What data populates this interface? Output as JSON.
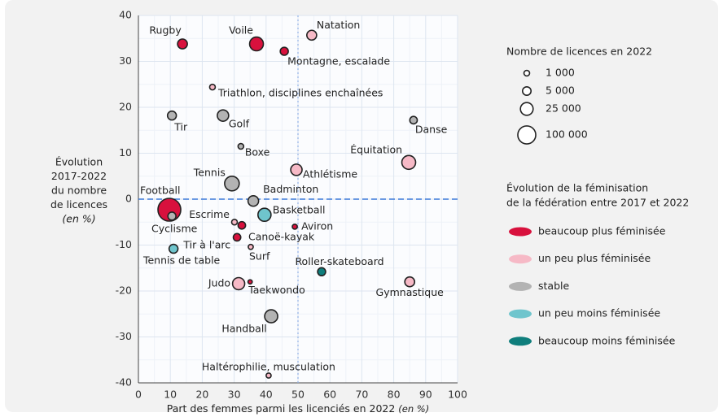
{
  "chart_data": {
    "type": "scatter",
    "x_label": "Part des femmes parmi les licenciés en 2022",
    "x_label_unit": "(en %)",
    "y_label": [
      "Évolution",
      "2017-2022",
      "du nombre",
      "de licences"
    ],
    "y_label_unit": "(en %)",
    "xlim": [
      0,
      100
    ],
    "xticks": [
      0,
      10,
      20,
      30,
      40,
      50,
      60,
      70,
      80,
      90,
      100
    ],
    "ylim": [
      -40,
      40
    ],
    "yticks": [
      -40,
      -30,
      -20,
      -10,
      0,
      10,
      20,
      30,
      40
    ],
    "grid": true,
    "hline": 0,
    "vline": 50,
    "size_legend": {
      "title": "Nombre de licences en 2022",
      "sizes": [
        {
          "value": 1000,
          "label": "1 000"
        },
        {
          "value": 5000,
          "label": "5 000"
        },
        {
          "value": 25000,
          "label": "25 000"
        },
        {
          "value": 100000,
          "label": "100 000"
        }
      ]
    },
    "color_legend_title": [
      "Évolution de la féminisation",
      "de la fédération entre 2017 et 2022"
    ],
    "series": [
      {
        "name": "beaucoup plus féminisée",
        "color": "#d8113d",
        "labels": [
          "Rugby",
          "Voile",
          "Montagne, escalade",
          "Football",
          "Canoë-kayak",
          "Aviron",
          "Tir à l'arc",
          "Taekwondo"
        ],
        "x": [
          13.8,
          37,
          45.7,
          9.7,
          32.4,
          49,
          30.9,
          35
        ],
        "values": [
          33.8,
          33.8,
          32.2,
          -2.3,
          -5.7,
          -6,
          -8.3,
          -18
        ],
        "sizes": [
          9000,
          35000,
          4000,
          260000,
          3000,
          600,
          3000,
          300
        ]
      },
      {
        "name": "un peu plus féminisée",
        "color": "#f6b9c6",
        "labels": [
          "Natation",
          "Triathlon, disciplines enchaînées",
          "Équitation",
          "Athlétisme",
          "Escrime",
          "Surf",
          "Gymnastique",
          "Judo",
          "Haltérophilie, musculation"
        ],
        "x": [
          54.3,
          23.2,
          84.7,
          49.5,
          30.1,
          35.2,
          85,
          31.4,
          40.8
        ],
        "values": [
          35.7,
          24.4,
          8,
          6.4,
          -5,
          -10.4,
          -18,
          -18.4,
          -38.4
        ],
        "sizes": [
          9000,
          1000,
          35000,
          16000,
          1000,
          600,
          9000,
          21000,
          600
        ]
      },
      {
        "name": "stable",
        "color": "#b3b3b3",
        "labels": [
          "Tir",
          "Golf",
          "Danse",
          "Boxe",
          "Tennis",
          "Badminton",
          "Cyclisme",
          "Handball"
        ],
        "x": [
          10.5,
          26.5,
          86.2,
          32.1,
          29.3,
          36,
          10.5,
          41.6
        ],
        "values": [
          18.2,
          18.2,
          17.2,
          11.5,
          3.4,
          -0.4,
          -3.7,
          -25.5
        ],
        "sizes": [
          6000,
          16000,
          3000,
          1000,
          44000,
          12000,
          4000,
          28000
        ]
      },
      {
        "name": "un peu moins féminisée",
        "color": "#6fc5cd",
        "labels": [
          "Basketball",
          "Tennis de table"
        ],
        "x": [
          39.5,
          11
        ],
        "values": [
          -3.4,
          -10.8
        ],
        "sizes": [
          28000,
          6000
        ]
      },
      {
        "name": "beaucoup moins féminisée",
        "color": "#0f7e7c",
        "labels": [
          "Roller-skateboard"
        ],
        "x": [
          57.4
        ],
        "values": [
          -15.8
        ],
        "sizes": [
          4000
        ]
      }
    ]
  }
}
